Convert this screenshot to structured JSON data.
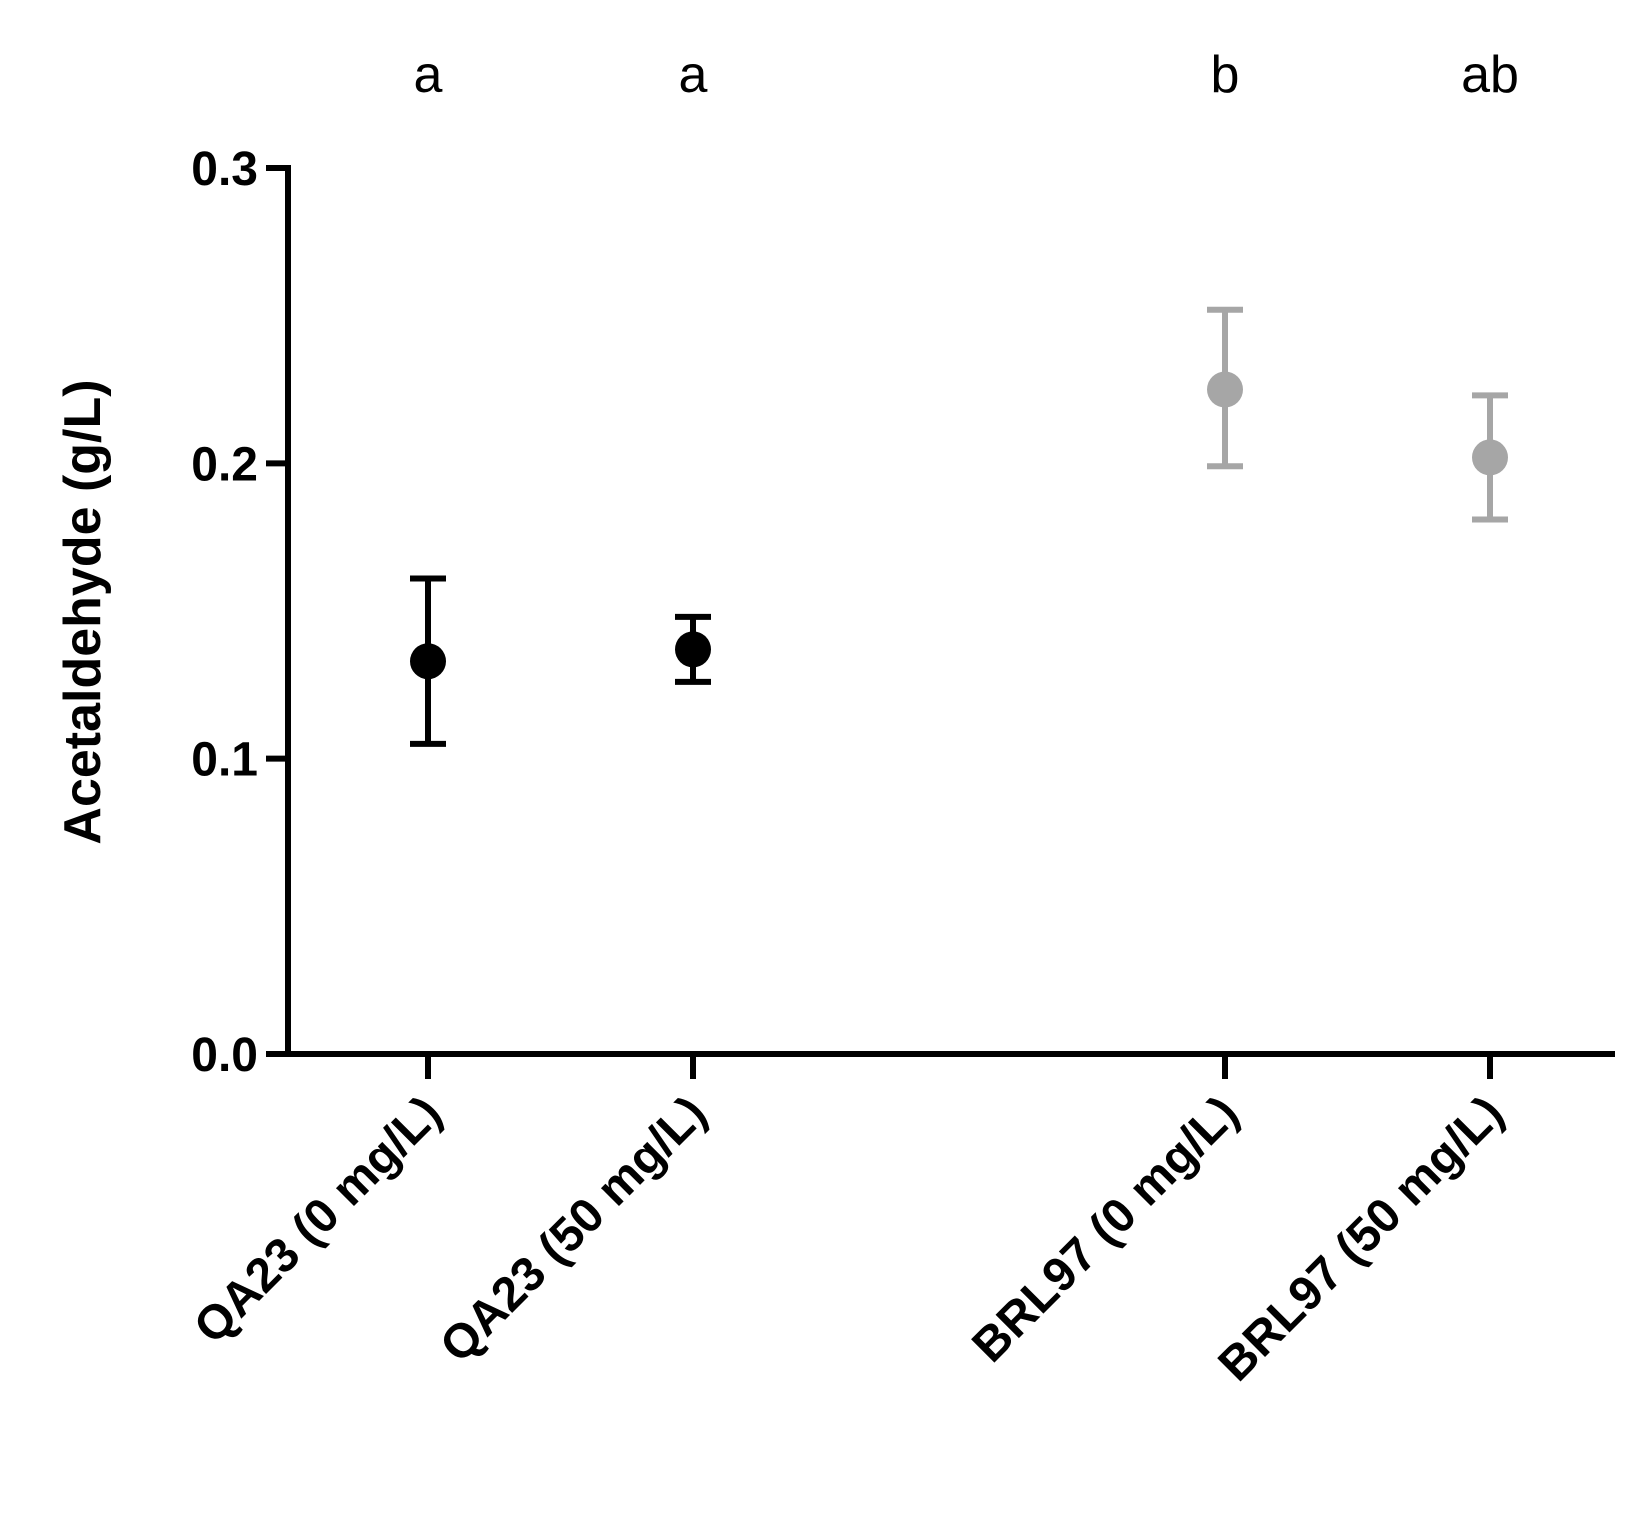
{
  "chart_data": {
    "type": "scatter",
    "ylabel": "Acetaldehyde (g/L)",
    "xlabel": "",
    "ylim": [
      0,
      0.3
    ],
    "yticks": [
      "0.0",
      "0.1",
      "0.2",
      "0.3"
    ],
    "categories": [
      "QA23 (0 mg/L)",
      "QA23 (50 mg/L)",
      "BRL97 (0 mg/L)",
      "BRL97 (50 mg/L)"
    ],
    "means": [
      0.133,
      0.137,
      0.225,
      0.202
    ],
    "error_low": [
      0.105,
      0.126,
      0.199,
      0.181
    ],
    "error_high": [
      0.161,
      0.148,
      0.252,
      0.223
    ],
    "significance_letters": [
      "a",
      "a",
      "b",
      "ab"
    ],
    "point_colors": [
      "#000000",
      "#000000",
      "#a6a6a6",
      "#a6a6a6"
    ],
    "grid": false
  }
}
